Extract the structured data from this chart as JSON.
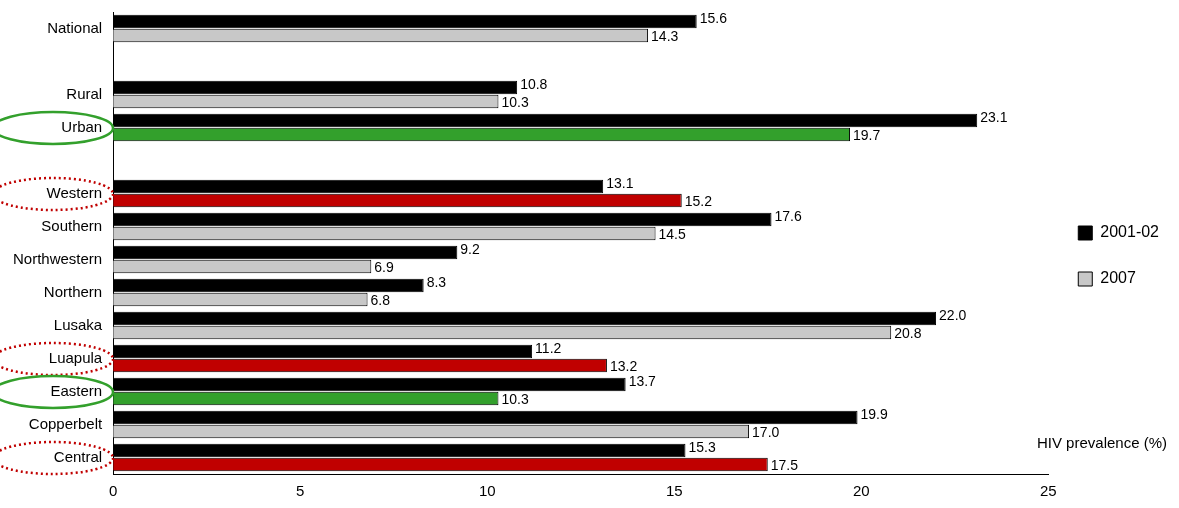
{
  "chart_data": {
    "type": "bar",
    "orientation": "horizontal",
    "xlabel": "HIV prevalence (%)",
    "categories": [
      "National",
      null,
      "Rural",
      "Urban",
      null,
      "Western",
      "Southern",
      "Northwestern",
      "Northern",
      "Lusaka",
      "Luapula",
      "Eastern",
      "Copperbelt",
      "Central"
    ],
    "series": [
      {
        "name": "2001-02",
        "color": "#000000",
        "values": [
          15.6,
          null,
          10.8,
          23.1,
          null,
          13.1,
          17.6,
          9.2,
          8.3,
          22.0,
          11.2,
          13.7,
          19.9,
          15.3
        ],
        "value_labels": [
          "15.6",
          null,
          "10.8",
          "23.1",
          null,
          "13.1",
          "17.6",
          "9.2",
          "8.3",
          "22.0",
          "11.2",
          "13.7",
          "19.9",
          "15.3"
        ]
      },
      {
        "name": "2007",
        "color": "#c8c8c8",
        "colors": [
          "#c8c8c8",
          null,
          "#c8c8c8",
          "#33a02c",
          null,
          "#c00000",
          "#c8c8c8",
          "#c8c8c8",
          "#c8c8c8",
          "#c8c8c8",
          "#c00000",
          "#33a02c",
          "#c8c8c8",
          "#c00000"
        ],
        "values": [
          14.3,
          null,
          10.3,
          19.7,
          null,
          15.2,
          14.5,
          6.9,
          6.8,
          20.8,
          13.2,
          10.3,
          17.0,
          17.5
        ],
        "value_labels": [
          "14.3",
          null,
          "10.3",
          "19.7",
          null,
          "15.2",
          "14.5",
          "6.9",
          "6.8",
          "20.8",
          "13.2",
          "10.3",
          "17.0",
          "17.5"
        ]
      }
    ],
    "xlim": [
      0,
      25
    ],
    "xticks": [
      0,
      5,
      10,
      15,
      20,
      25
    ],
    "grid": false,
    "legend": "right"
  }
}
